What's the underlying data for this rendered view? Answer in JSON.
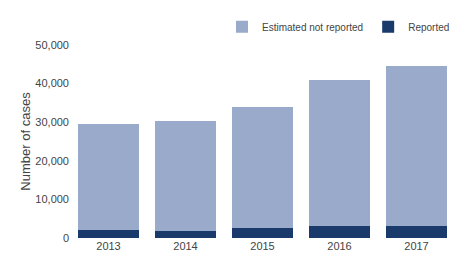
{
  "chart_data": {
    "type": "bar",
    "stacked": true,
    "categories": [
      "2013",
      "2014",
      "2015",
      "2016",
      "2017"
    ],
    "series": [
      {
        "name": "Reported",
        "color": "#1a3a6b",
        "values": [
          2000,
          1900,
          2500,
          3000,
          3000
        ]
      },
      {
        "name": "Estimated not reported",
        "color": "#9aaaca",
        "values": [
          27500,
          28500,
          31500,
          38000,
          41500
        ]
      }
    ],
    "ylabel": "Number of cases",
    "ylim": [
      0,
      50000
    ],
    "yticks": [
      0,
      {
        "value": 10000,
        "label": "10,000"
      },
      {
        "value": 20000,
        "label": "20,000"
      },
      {
        "value": 30000,
        "label": "30,000"
      },
      {
        "value": 40000,
        "label": "40,000"
      },
      {
        "value": 50000,
        "label": "50,000"
      }
    ],
    "legend": "upper right",
    "grid": false
  }
}
